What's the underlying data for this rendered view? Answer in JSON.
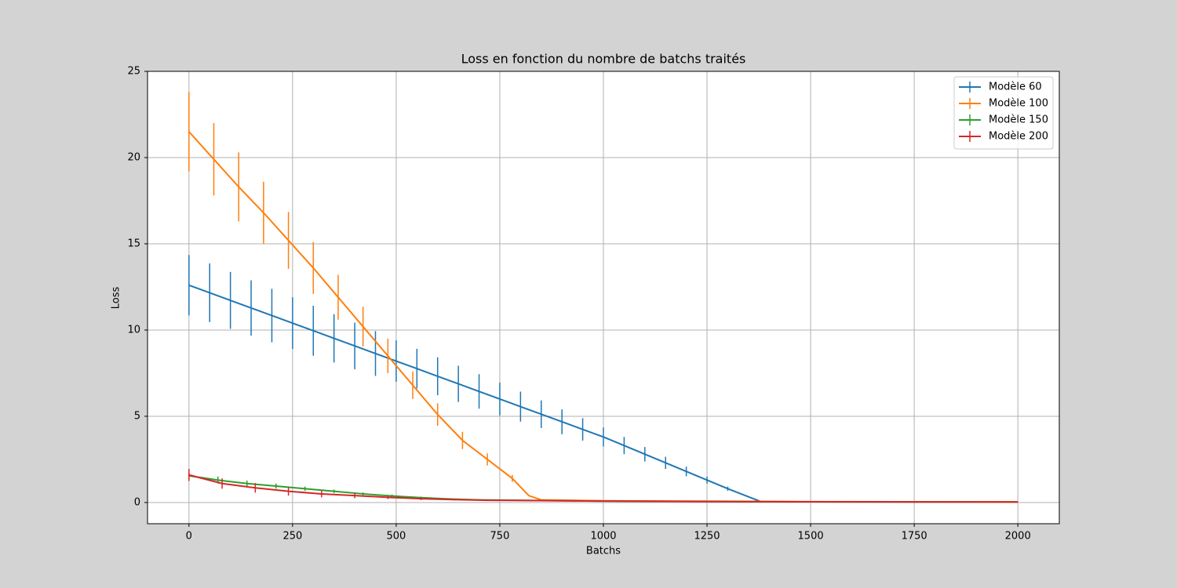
{
  "chart_data": {
    "type": "errorbar_line",
    "title": "Loss en fonction du nombre de batchs traités",
    "xlabel": "Batchs",
    "ylabel": "Loss",
    "xlim": [
      -100,
      2100
    ],
    "ylim": [
      -1.23,
      25
    ],
    "xticks": [
      0,
      250,
      500,
      750,
      1000,
      1250,
      1500,
      1750,
      2000
    ],
    "yticks": [
      0,
      5,
      10,
      15,
      20,
      25
    ],
    "grid": true,
    "legend": "upper right",
    "series": [
      {
        "name": "Modèle 60",
        "color": "#1f77b4",
        "x": [
          0,
          50,
          100,
          150,
          200,
          250,
          300,
          350,
          400,
          450,
          500,
          550,
          600,
          650,
          700,
          750,
          800,
          850,
          900,
          950,
          1000,
          1050,
          1100,
          1150,
          1200,
          1250,
          1300,
          1380,
          1500,
          1750,
          2000
        ],
        "values": [
          12.6,
          12.16,
          11.72,
          11.28,
          10.84,
          10.4,
          9.96,
          9.52,
          9.08,
          8.64,
          8.2,
          7.76,
          7.32,
          6.88,
          6.44,
          6.0,
          5.56,
          5.12,
          4.68,
          4.24,
          3.8,
          3.3,
          2.8,
          2.3,
          1.8,
          1.3,
          0.8,
          0.05,
          0.04,
          0.03,
          0.02
        ],
        "errors": [
          1.75,
          1.7,
          1.65,
          1.6,
          1.55,
          1.5,
          1.45,
          1.4,
          1.35,
          1.3,
          1.2,
          1.15,
          1.1,
          1.05,
          1.0,
          0.95,
          0.87,
          0.8,
          0.72,
          0.65,
          0.55,
          0.5,
          0.42,
          0.35,
          0.28,
          0.2,
          0.12,
          null,
          null,
          null,
          null
        ]
      },
      {
        "name": "Modèle 100",
        "color": "#ff7f0e",
        "x": [
          0,
          60,
          120,
          180,
          240,
          300,
          360,
          420,
          480,
          540,
          600,
          660,
          720,
          780,
          820,
          850,
          1000,
          1500,
          2000
        ],
        "values": [
          21.5,
          19.9,
          18.3,
          16.8,
          15.2,
          13.6,
          11.9,
          10.2,
          8.5,
          6.8,
          5.1,
          3.6,
          2.5,
          1.4,
          0.4,
          0.15,
          0.1,
          0.05,
          0.03
        ],
        "errors": [
          2.3,
          2.1,
          2.0,
          1.8,
          1.65,
          1.5,
          1.3,
          1.15,
          1.0,
          0.8,
          0.65,
          0.5,
          0.35,
          0.2,
          null,
          null,
          null,
          null,
          null
        ]
      },
      {
        "name": "Modèle 150",
        "color": "#2ca02c",
        "x": [
          0,
          70,
          140,
          210,
          280,
          350,
          420,
          490,
          560,
          630,
          700,
          1000,
          1500,
          2000
        ],
        "values": [
          1.55,
          1.3,
          1.1,
          0.95,
          0.8,
          0.65,
          0.5,
          0.38,
          0.28,
          0.2,
          0.15,
          0.08,
          0.04,
          0.03
        ],
        "errors": [
          0.25,
          0.2,
          0.17,
          0.15,
          0.12,
          0.1,
          0.09,
          0.08,
          0.06,
          0.05,
          null,
          null,
          null,
          null
        ]
      },
      {
        "name": "Modèle 200",
        "color": "#d62728",
        "x": [
          0,
          80,
          160,
          240,
          320,
          400,
          480,
          560,
          640,
          720,
          1000,
          1500,
          2000
        ],
        "values": [
          1.6,
          1.1,
          0.85,
          0.65,
          0.5,
          0.4,
          0.3,
          0.22,
          0.17,
          0.13,
          0.08,
          0.04,
          0.03
        ],
        "errors": [
          0.35,
          0.3,
          0.28,
          0.25,
          0.2,
          0.15,
          0.1,
          0.08,
          0.05,
          0.03,
          null,
          null,
          null
        ]
      }
    ]
  }
}
